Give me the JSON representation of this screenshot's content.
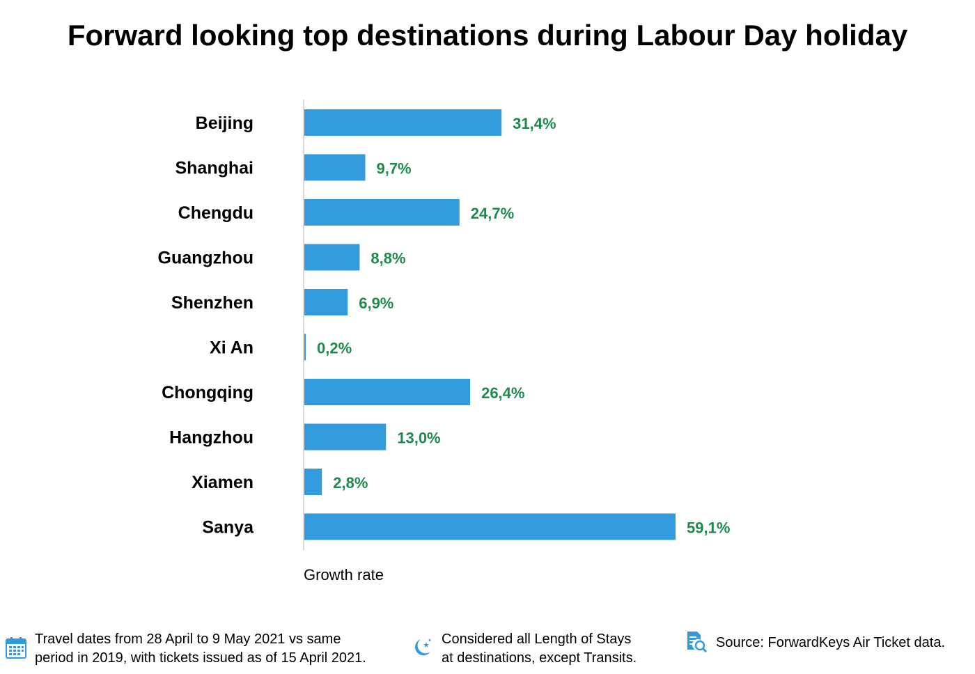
{
  "title": "Forward looking top destinations during Labour Day holiday",
  "chart_data": {
    "type": "bar",
    "orientation": "horizontal",
    "categories": [
      "Beijing",
      "Shanghai",
      "Chengdu",
      "Guangzhou",
      "Shenzhen",
      "Xi An",
      "Chongqing",
      "Hangzhou",
      "Xiamen",
      "Sanya"
    ],
    "values": [
      31.4,
      9.7,
      24.7,
      8.8,
      6.9,
      0.2,
      26.4,
      13.0,
      2.8,
      59.1
    ],
    "value_labels": [
      "31,4%",
      "9,7%",
      "24,7%",
      "8,8%",
      "6,9%",
      "0,2%",
      "26,4%",
      "13,0%",
      "2,8%",
      "59,1%"
    ],
    "xlabel": "Growth rate",
    "xlim": [
      0,
      59.1
    ],
    "grid": false,
    "colors": {
      "bar": "#339ADC",
      "label": "#1E8A4C",
      "axis": "#D9D9D9"
    }
  },
  "footer": [
    {
      "icon": "calendar-icon",
      "lines": [
        "Travel dates from 28 April to 9 May 2021 vs same",
        "period in 2019, with tickets issued as of 15 April 2021."
      ]
    },
    {
      "icon": "moon-stars-icon",
      "lines": [
        "Considered all Length of Stays",
        "at destinations, except Transits."
      ]
    },
    {
      "icon": "document-search-icon",
      "lines": [
        "Source: ForwardKeys Air Ticket data."
      ]
    }
  ]
}
